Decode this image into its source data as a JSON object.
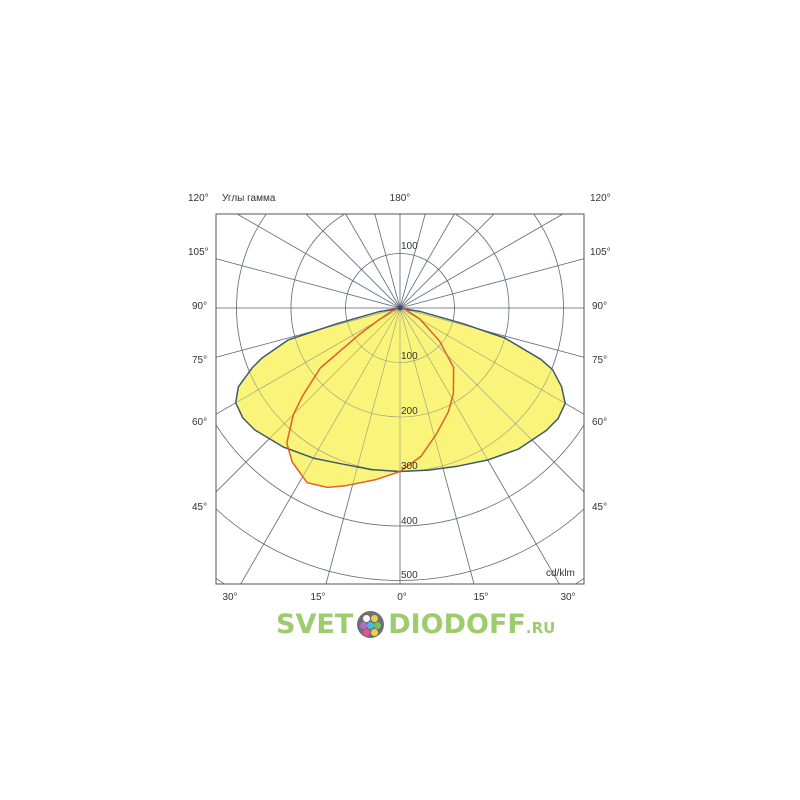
{
  "chart_data": {
    "type": "polar",
    "title": "",
    "gamma_label": "Углы гамма",
    "unit_label": "cd/klm",
    "top_angle_label": "180°",
    "left_angle_labels": [
      "120°",
      "105°",
      "90°",
      "75°",
      "60°",
      "45°"
    ],
    "right_angle_labels": [
      "120°",
      "105°",
      "90°",
      "75°",
      "60°",
      "45°"
    ],
    "bottom_angle_labels": [
      "30°",
      "15°",
      "0°",
      "15°",
      "30°"
    ],
    "radial_upper_label": "100",
    "radial_labels": [
      "100",
      "200",
      "300",
      "400",
      "500"
    ],
    "radial_range": [
      0,
      500
    ],
    "angle_step_deg": 15,
    "grid": true,
    "series": [
      {
        "plane": "C0-C180",
        "color": "#3d5a6c",
        "fill": "#fbf47a",
        "points": [
          [
            -90,
            0
          ],
          [
            -80,
            40
          ],
          [
            -76,
            120
          ],
          [
            -74,
            214
          ],
          [
            -70,
            270
          ],
          [
            -68,
            292
          ],
          [
            -64,
            330
          ],
          [
            -60,
            348
          ],
          [
            -55,
            352
          ],
          [
            -50,
            348
          ],
          [
            -40,
            333
          ],
          [
            -30,
            318
          ],
          [
            -20,
            305
          ],
          [
            -10,
            301
          ],
          [
            0,
            300
          ],
          [
            10,
            302
          ],
          [
            20,
            309
          ],
          [
            30,
            322
          ],
          [
            40,
            338
          ],
          [
            50,
            350
          ],
          [
            55,
            354
          ],
          [
            60,
            350
          ],
          [
            64,
            330
          ],
          [
            68,
            302
          ],
          [
            70,
            275
          ],
          [
            74,
            200
          ],
          [
            76,
            120
          ],
          [
            80,
            40
          ],
          [
            90,
            0
          ]
        ]
      },
      {
        "plane": "C90-C270",
        "color": "#e0602a",
        "fill": "#fbf47a",
        "points": [
          [
            -90,
            0
          ],
          [
            -70,
            15
          ],
          [
            -60,
            50
          ],
          [
            -57,
            88
          ],
          [
            -53,
            183
          ],
          [
            -48,
            240
          ],
          [
            -45,
            277
          ],
          [
            -40,
            323
          ],
          [
            -35,
            345
          ],
          [
            -28,
            363
          ],
          [
            -22,
            355
          ],
          [
            -17,
            341
          ],
          [
            -8,
            318
          ],
          [
            0,
            300
          ],
          [
            8,
            275
          ],
          [
            16,
            241
          ],
          [
            25,
            210
          ],
          [
            32,
            185
          ],
          [
            42,
            147
          ],
          [
            50,
            95
          ],
          [
            61,
            42
          ],
          [
            75,
            10
          ],
          [
            90,
            0
          ]
        ]
      }
    ]
  },
  "logo": {
    "text_left": "SVET",
    "text_right": "DIODOFF",
    "suffix": ".RU"
  }
}
